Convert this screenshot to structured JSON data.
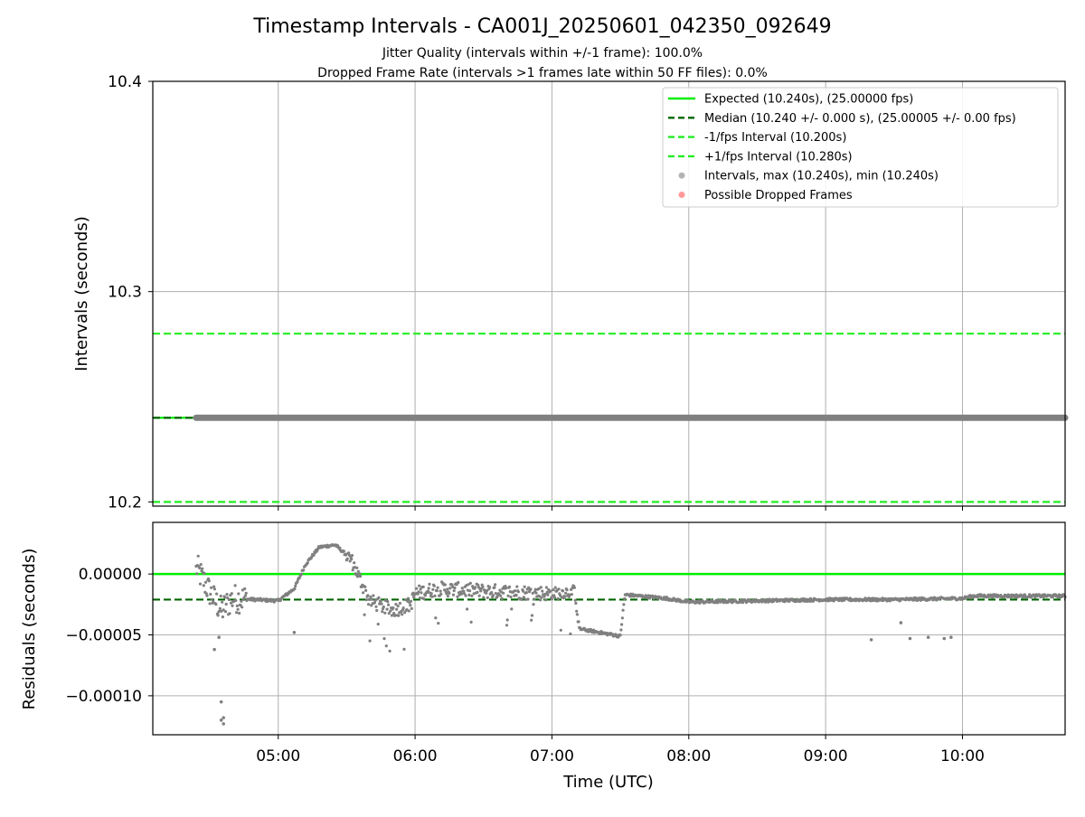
{
  "title": "Timestamp Intervals - CA001J_20250601_042350_092649",
  "subtitle_1": "Jitter Quality (intervals within +/-1 frame): 100.0%",
  "subtitle_2": "Dropped Frame Rate (intervals >1 frames late within 50 FF files): 0.0%",
  "colors": {
    "expected": "#00ee00",
    "median": "#006400",
    "interval_bounds": "#22ee22",
    "points": "#808080",
    "dropped": "#ff5555",
    "grid": "#b0b0b0"
  },
  "chart_data": [
    {
      "type": "line",
      "panel": "top",
      "ylabel": "Intervals (seconds)",
      "ylim": [
        10.198,
        10.4
      ],
      "yticks": [
        "10.2",
        "10.3",
        "10.4"
      ],
      "ytick_values": [
        10.2,
        10.3,
        10.4
      ],
      "xlim": [
        "04:05",
        "10:45"
      ],
      "grid": true,
      "legend_position": "top-right",
      "legend": [
        {
          "label": "Expected (10.240s), (25.00000 fps)",
          "style": "solid",
          "color": "#00ee00"
        },
        {
          "label": "Median (10.240 +/- 0.000 s), (25.00005 +/- 0.00 fps)",
          "style": "dashed",
          "color": "#006400"
        },
        {
          "label": "-1/fps Interval (10.200s)",
          "style": "dashed",
          "color": "#22ee22"
        },
        {
          "label": "+1/fps Interval (10.280s)",
          "style": "dashed",
          "color": "#22ee22"
        },
        {
          "label": "Intervals, max (10.240s), min (10.240s)",
          "style": "marker",
          "color": "#808080"
        },
        {
          "label": "Possible Dropped Frames",
          "style": "marker",
          "color": "#ff5555"
        }
      ],
      "series": [
        {
          "name": "Expected",
          "y": 10.24
        },
        {
          "name": "Median",
          "y": 10.24
        },
        {
          "name": "-1/fps Interval",
          "y": 10.2
        },
        {
          "name": "+1/fps Interval",
          "y": 10.28
        },
        {
          "name": "Intervals",
          "x_start": "04:24",
          "x_end": "10:45",
          "y": 10.24
        }
      ]
    },
    {
      "type": "scatter",
      "panel": "bottom",
      "xlabel": "Time (UTC)",
      "ylabel": "Residuals (seconds)",
      "ylim": [
        -0.000132,
        4.24e-05
      ],
      "yticks": [
        "0.00000",
        "−0.00005",
        "−0.00010"
      ],
      "ytick_values": [
        0,
        -5e-05,
        -0.0001
      ],
      "xticks": [
        "05:00",
        "06:00",
        "07:00",
        "08:00",
        "09:00",
        "10:00"
      ],
      "xlim": [
        "04:05",
        "10:45"
      ],
      "grid": true,
      "reference_lines": [
        {
          "name": "Expected",
          "y": 0
        },
        {
          "name": "Median",
          "y": -2.1e-05
        }
      ],
      "residual_trend": [
        {
          "t": "04:24",
          "y": 6e-06
        },
        {
          "t": "04:30",
          "y": -1.5e-05
        },
        {
          "t": "04:35",
          "y": -3e-05
        },
        {
          "t": "04:40",
          "y": -2e-05
        },
        {
          "t": "04:50",
          "y": -2.1e-05
        },
        {
          "t": "05:00",
          "y": -2.2e-05
        },
        {
          "t": "05:07",
          "y": -1.2e-05
        },
        {
          "t": "05:12",
          "y": 8e-06
        },
        {
          "t": "05:18",
          "y": 2.2e-05
        },
        {
          "t": "05:25",
          "y": 2.4e-05
        },
        {
          "t": "05:32",
          "y": 1.2e-05
        },
        {
          "t": "05:40",
          "y": -2.2e-05
        },
        {
          "t": "05:50",
          "y": -3e-05
        },
        {
          "t": "05:58",
          "y": -2.5e-05
        },
        {
          "t": "06:00",
          "y": -1.6e-05
        },
        {
          "t": "06:10",
          "y": -1.2e-05
        },
        {
          "t": "06:30",
          "y": -1.4e-05
        },
        {
          "t": "07:00",
          "y": -1.6e-05
        },
        {
          "t": "07:10",
          "y": -1.4e-05
        },
        {
          "t": "07:12",
          "y": -4.5e-05
        },
        {
          "t": "07:30",
          "y": -5.1e-05
        },
        {
          "t": "07:32",
          "y": -1.7e-05
        },
        {
          "t": "07:50",
          "y": -2e-05
        },
        {
          "t": "08:00",
          "y": -2.3e-05
        },
        {
          "t": "08:30",
          "y": -2.2e-05
        },
        {
          "t": "09:00",
          "y": -2.1e-05
        },
        {
          "t": "09:30",
          "y": -2.1e-05
        },
        {
          "t": "10:00",
          "y": -2e-05
        },
        {
          "t": "10:05",
          "y": -1.8e-05
        },
        {
          "t": "10:45",
          "y": -1.8e-05
        }
      ],
      "outliers": [
        {
          "t": "04:32",
          "y": -6.2e-05
        },
        {
          "t": "04:34",
          "y": -5.2e-05
        },
        {
          "t": "04:35",
          "y": -0.000105
        },
        {
          "t": "04:35",
          "y": -0.00012
        },
        {
          "t": "04:36",
          "y": -0.000123
        },
        {
          "t": "04:36",
          "y": -0.000118
        },
        {
          "t": "05:07",
          "y": -4.8e-05
        },
        {
          "t": "09:20",
          "y": -5.4e-05
        },
        {
          "t": "09:33",
          "y": -4e-05
        },
        {
          "t": "09:37",
          "y": -5.3e-05
        },
        {
          "t": "09:45",
          "y": -5.2e-05
        },
        {
          "t": "09:52",
          "y": -5.3e-05
        },
        {
          "t": "09:55",
          "y": -5.2e-05
        }
      ]
    }
  ]
}
